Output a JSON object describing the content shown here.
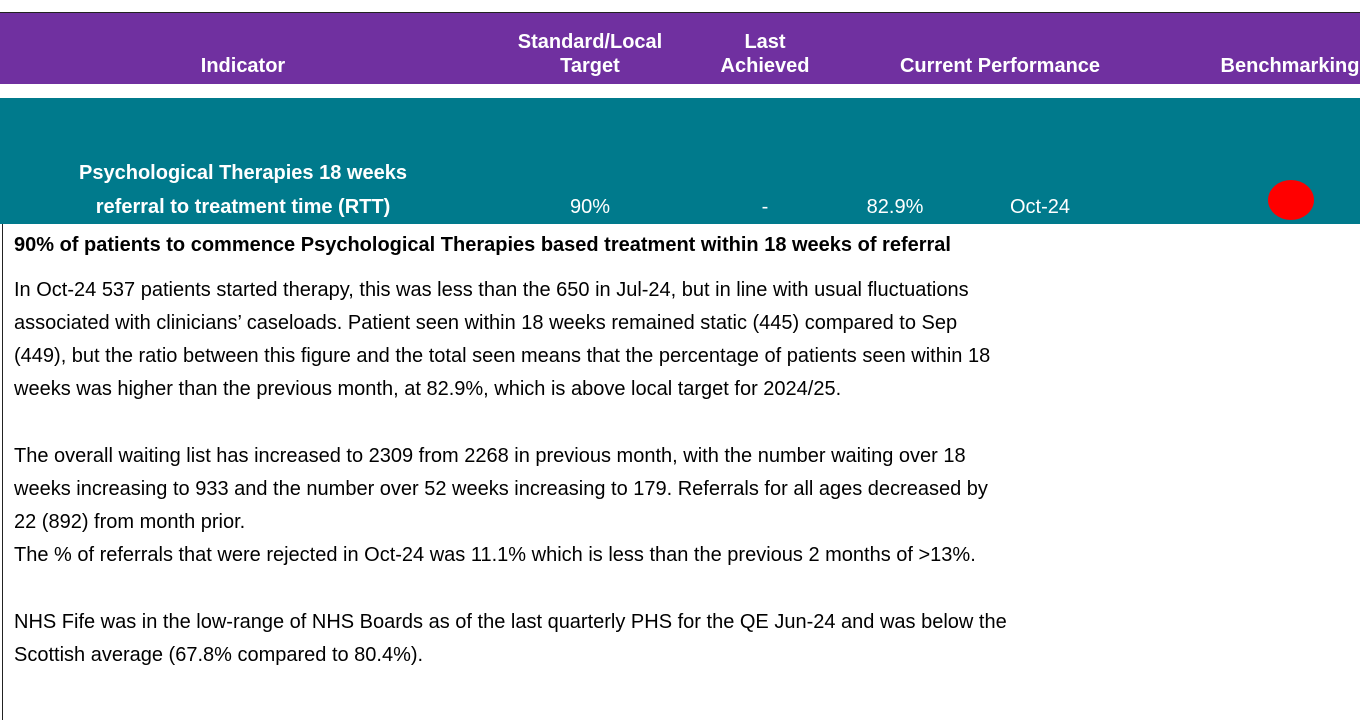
{
  "table": {
    "header": [
      "Indicator",
      "Standard/Local Target",
      "Last Achieved",
      "Current Performance",
      "Benchmarking"
    ],
    "row": {
      "indicator": [
        "Psychological Therapies 18 weeks",
        "referral to treatment time (RTT)"
      ],
      "target": "90%",
      "last_achieved": "-",
      "current_value": "82.9%",
      "current_period": "Oct-24"
    }
  },
  "description": {
    "heading": "90% of patients to commence Psychological Therapies based treatment within 18 weeks of referral",
    "paragraphs": [
      [
        "In Oct-24 537 patients started therapy, this was less than the 650 in Jul-24, but in line with usual fluctuations",
        "associated with clinicians’ caseloads.  Patient seen within 18 weeks remained static (445) compared to Sep",
        "(449), but the ratio between this figure and the total seen means that the percentage of patients seen within 18",
        "weeks was higher than the previous month, at 82.9%, which is above local target for 2024/25."
      ],
      [
        "The overall waiting list has increased to 2309 from 2268 in previous month, with the number waiting over 18",
        "weeks increasing to 933 and the number over 52 weeks increasing to 179.  Referrals for all ages decreased by",
        "22 (892) from month prior.",
        "The % of referrals that were rejected in Oct-24 was 11.1% which is less than the previous 2 months of >13%."
      ],
      [
        "NHS Fife was in the low-range of NHS Boards as of the last quarterly PHS for the QE Jun-24 and was below the",
        "Scottish average (67.8% compared to 80.4%)."
      ]
    ]
  }
}
